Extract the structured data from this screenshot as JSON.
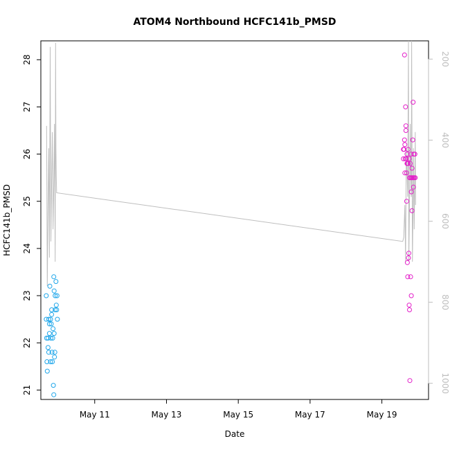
{
  "chart_data": {
    "type": "scatter",
    "title": "ATOM4 Northbound HCFC141b_PMSD",
    "xlabel": "Date",
    "ylabel": "HCFC141b_PMSD",
    "x_ticks": [
      "May 11",
      "May 13",
      "May 15",
      "May 17",
      "May 19"
    ],
    "x_tick_values": [
      11,
      13,
      15,
      17,
      19
    ],
    "xlim": [
      9.5,
      20.3
    ],
    "y_ticks": [
      "21",
      "22",
      "23",
      "24",
      "25",
      "26",
      "27",
      "28"
    ],
    "ylim": [
      20.8,
      28.4
    ],
    "y2_ticks": [
      "200",
      "400",
      "600",
      "800",
      "1000"
    ],
    "y2lim": [
      1040,
      155
    ],
    "grid": false,
    "series": [
      {
        "color": "#1ea6ea",
        "marker": "open-circle",
        "points": [
          [
            9.65,
            23.0
          ],
          [
            9.65,
            22.5
          ],
          [
            9.66,
            22.1
          ],
          [
            9.67,
            21.6
          ],
          [
            9.68,
            21.4
          ],
          [
            9.7,
            21.9
          ],
          [
            9.7,
            22.1
          ],
          [
            9.72,
            22.5
          ],
          [
            9.72,
            21.8
          ],
          [
            9.74,
            22.4
          ],
          [
            9.74,
            22.2
          ],
          [
            9.75,
            23.2
          ],
          [
            9.77,
            22.5
          ],
          [
            9.77,
            21.6
          ],
          [
            9.78,
            22.1
          ],
          [
            9.79,
            22.4
          ],
          [
            9.8,
            22.6
          ],
          [
            9.8,
            22.7
          ],
          [
            9.81,
            21.8
          ],
          [
            9.82,
            21.6
          ],
          [
            9.83,
            22.1
          ],
          [
            9.84,
            22.3
          ],
          [
            9.85,
            21.1
          ],
          [
            9.86,
            20.9
          ],
          [
            9.86,
            23.4
          ],
          [
            9.87,
            23.1
          ],
          [
            9.87,
            22.2
          ],
          [
            9.88,
            21.7
          ],
          [
            9.89,
            21.8
          ],
          [
            9.9,
            23.0
          ],
          [
            9.9,
            22.7
          ],
          [
            9.92,
            23.3
          ],
          [
            9.93,
            22.8
          ],
          [
            9.94,
            22.7
          ],
          [
            9.95,
            23.0
          ],
          [
            9.96,
            22.5
          ]
        ]
      },
      {
        "color": "#e31ec9",
        "marker": "open-circle",
        "points": [
          [
            19.6,
            25.9
          ],
          [
            19.6,
            26.1
          ],
          [
            19.62,
            26.1
          ],
          [
            19.63,
            26.3
          ],
          [
            19.63,
            28.1
          ],
          [
            19.64,
            26.2
          ],
          [
            19.64,
            25.6
          ],
          [
            19.65,
            25.9
          ],
          [
            19.66,
            27.0
          ],
          [
            19.67,
            26.6
          ],
          [
            19.67,
            26.5
          ],
          [
            19.68,
            25.9
          ],
          [
            19.69,
            25.0
          ],
          [
            19.69,
            25.6
          ],
          [
            19.7,
            26.0
          ],
          [
            19.7,
            25.8
          ],
          [
            19.71,
            23.7
          ],
          [
            19.72,
            23.4
          ],
          [
            19.72,
            25.8
          ],
          [
            19.73,
            26.1
          ],
          [
            19.73,
            25.8
          ],
          [
            19.74,
            23.8
          ],
          [
            19.75,
            23.9
          ],
          [
            19.76,
            22.8
          ],
          [
            19.76,
            25.9
          ],
          [
            19.77,
            25.5
          ],
          [
            19.77,
            22.7
          ],
          [
            19.78,
            21.2
          ],
          [
            19.79,
            25.8
          ],
          [
            19.8,
            23.4
          ],
          [
            19.8,
            25.5
          ],
          [
            19.81,
            26.0
          ],
          [
            19.82,
            25.2
          ],
          [
            19.82,
            23.0
          ],
          [
            19.83,
            25.5
          ],
          [
            19.84,
            25.7
          ],
          [
            19.84,
            24.8
          ],
          [
            19.85,
            25.5
          ],
          [
            19.86,
            26.3
          ],
          [
            19.87,
            27.1
          ],
          [
            19.88,
            25.5
          ],
          [
            19.88,
            25.3
          ],
          [
            19.89,
            26.0
          ],
          [
            19.9,
            25.5
          ],
          [
            19.92,
            26.0
          ],
          [
            19.93,
            25.5
          ]
        ]
      },
      {
        "color": "#bebebe",
        "type": "line",
        "axis": "right",
        "points": [
          [
            9.66,
            365
          ],
          [
            9.68,
            760
          ],
          [
            9.7,
            560
          ],
          [
            9.72,
            420
          ],
          [
            9.74,
            690
          ],
          [
            9.76,
            170
          ],
          [
            9.78,
            650
          ],
          [
            9.8,
            500
          ],
          [
            9.82,
            380
          ],
          [
            9.84,
            620
          ],
          [
            9.86,
            510
          ],
          [
            9.88,
            360
          ],
          [
            9.9,
            700
          ],
          [
            9.91,
            160
          ],
          [
            9.92,
            420
          ],
          [
            9.93,
            490
          ],
          [
            9.94,
            530
          ],
          [
            19.58,
            650
          ],
          [
            19.61,
            640
          ],
          [
            19.64,
            560
          ],
          [
            19.66,
            700
          ],
          [
            19.68,
            420
          ],
          [
            19.7,
            480
          ],
          [
            19.72,
            540
          ],
          [
            19.74,
            155
          ],
          [
            19.75,
            700
          ],
          [
            19.77,
            560
          ],
          [
            19.79,
            360
          ],
          [
            19.8,
            480
          ],
          [
            19.82,
            540
          ],
          [
            19.83,
            155
          ],
          [
            19.85,
            700
          ],
          [
            19.87,
            560
          ],
          [
            19.88,
            420
          ],
          [
            19.89,
            500
          ],
          [
            19.9,
            620
          ],
          [
            19.92,
            480
          ],
          [
            19.93,
            380
          ],
          [
            19.94,
            560
          ]
        ]
      }
    ]
  }
}
